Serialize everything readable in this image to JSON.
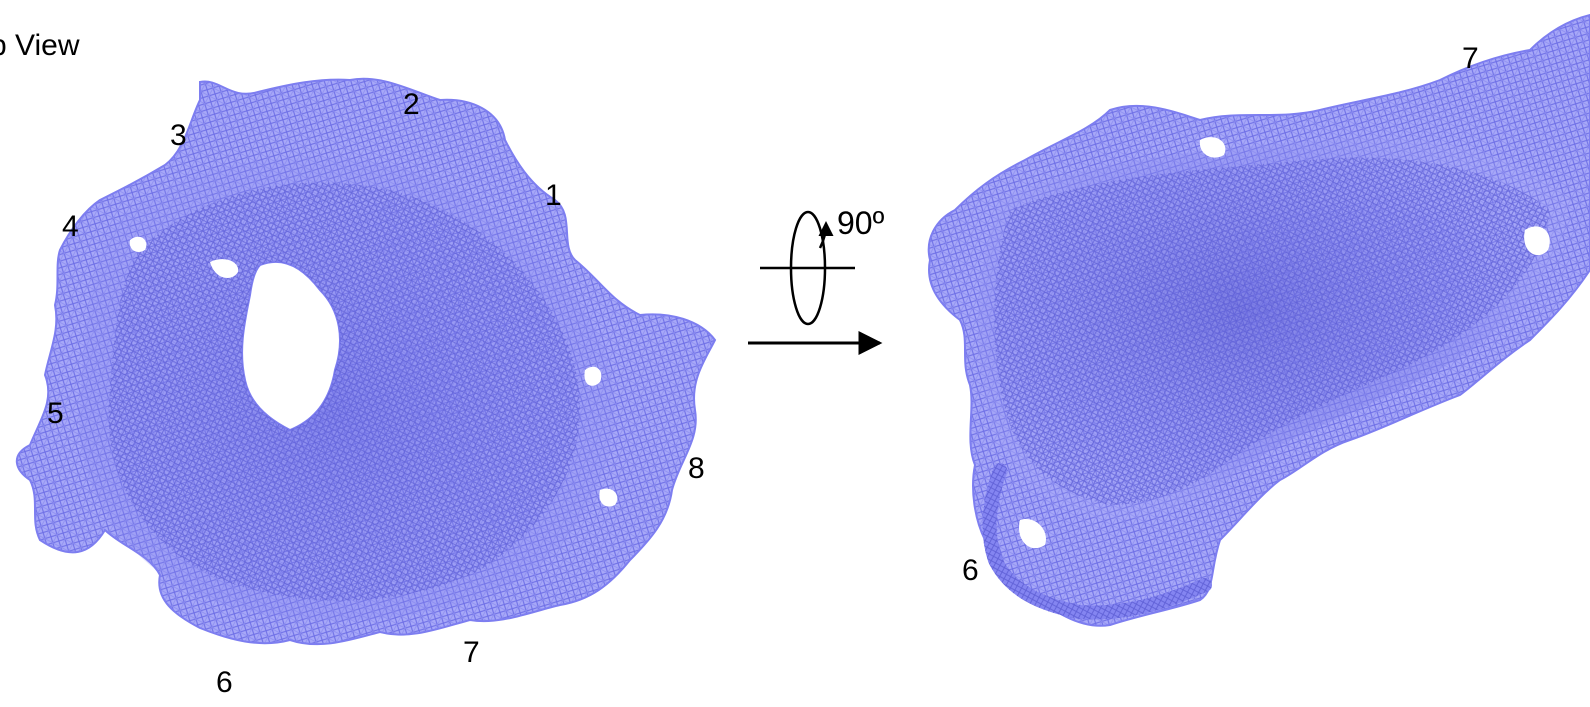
{
  "view_title": "p View",
  "rotation_label": "90º",
  "colors": {
    "density_mesh": "#7f80f2",
    "density_dark": "#6566d8",
    "density_light": "#a5a6f7",
    "arrow": "#000000"
  },
  "top_view": {
    "labels": [
      "1",
      "2",
      "3",
      "4",
      "5",
      "6",
      "7",
      "8"
    ]
  },
  "side_view": {
    "labels": [
      "7",
      "6"
    ]
  }
}
